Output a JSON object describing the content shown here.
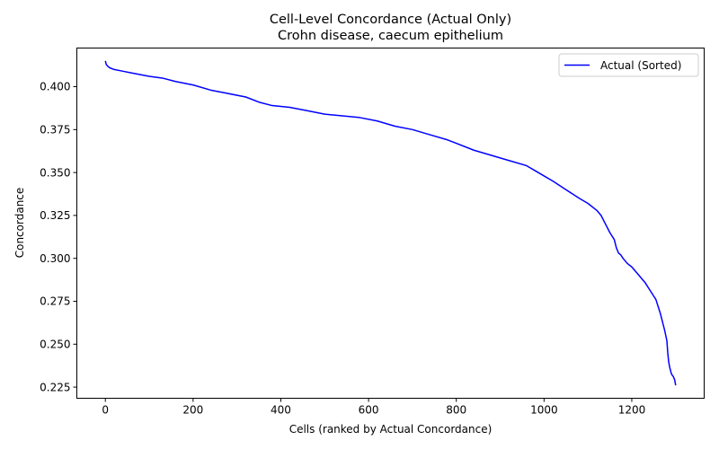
{
  "chart_data": {
    "type": "line",
    "title": "Cell-Level Concordance (Actual Only)",
    "subtitle": "Crohn disease, caecum epithelium",
    "xlabel": "Cells (ranked by Actual Concordance)",
    "ylabel": "Concordance",
    "xlim": [
      -65,
      1365
    ],
    "ylim": [
      0.2185,
      0.4225
    ],
    "x_ticks": [
      0,
      200,
      400,
      600,
      800,
      1000,
      1200
    ],
    "y_ticks": [
      0.225,
      0.25,
      0.275,
      0.3,
      0.325,
      0.35,
      0.375,
      0.4
    ],
    "y_tick_labels": [
      "0.225",
      "0.250",
      "0.275",
      "0.300",
      "0.325",
      "0.350",
      "0.375",
      "0.400"
    ],
    "grid": false,
    "legend_position": "upper right",
    "series": [
      {
        "name": "Actual (Sorted)",
        "color": "#0000ff",
        "x": [
          0,
          2,
          5,
          10,
          20,
          40,
          60,
          80,
          100,
          130,
          160,
          200,
          240,
          280,
          320,
          350,
          380,
          420,
          460,
          500,
          540,
          580,
          620,
          660,
          700,
          740,
          780,
          800,
          840,
          880,
          920,
          960,
          980,
          1000,
          1020,
          1050,
          1080,
          1100,
          1120,
          1130,
          1140,
          1150,
          1160,
          1165,
          1170,
          1175,
          1180,
          1190,
          1200,
          1210,
          1220,
          1230,
          1240,
          1250,
          1255,
          1260,
          1265,
          1270,
          1275,
          1280,
          1282,
          1284,
          1286,
          1288,
          1290,
          1292,
          1295,
          1298,
          1300
        ],
        "y": [
          0.415,
          0.413,
          0.412,
          0.411,
          0.41,
          0.409,
          0.408,
          0.407,
          0.406,
          0.405,
          0.403,
          0.401,
          0.398,
          0.396,
          0.394,
          0.391,
          0.389,
          0.388,
          0.386,
          0.384,
          0.383,
          0.382,
          0.38,
          0.377,
          0.375,
          0.372,
          0.369,
          0.367,
          0.363,
          0.36,
          0.357,
          0.354,
          0.351,
          0.348,
          0.345,
          0.34,
          0.335,
          0.332,
          0.328,
          0.325,
          0.32,
          0.315,
          0.311,
          0.306,
          0.303,
          0.302,
          0.3,
          0.297,
          0.295,
          0.292,
          0.289,
          0.286,
          0.282,
          0.278,
          0.276,
          0.272,
          0.268,
          0.263,
          0.258,
          0.252,
          0.245,
          0.24,
          0.237,
          0.235,
          0.233,
          0.232,
          0.231,
          0.229,
          0.226
        ]
      }
    ]
  }
}
